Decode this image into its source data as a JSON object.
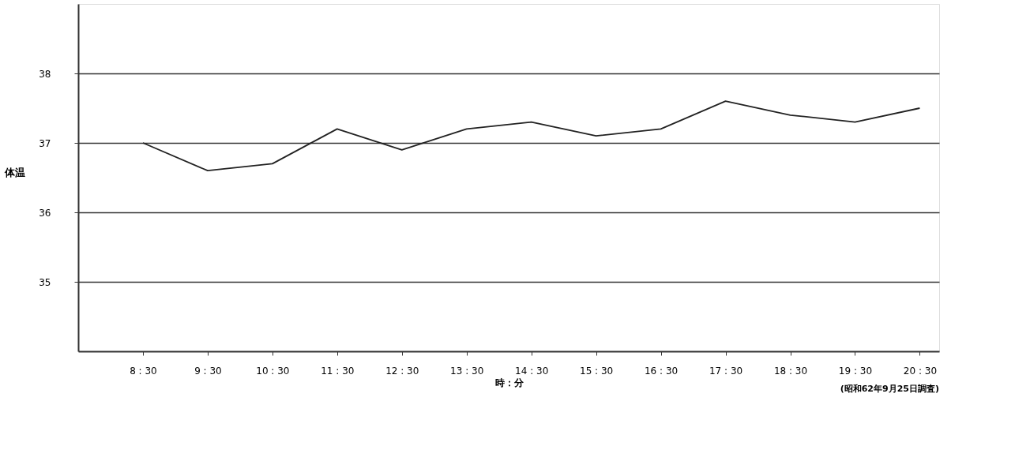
{
  "chart_data": {
    "type": "line",
    "xlabel": "時：分",
    "ylabel": "体温",
    "categories": [
      "8 : 30",
      "9 : 30",
      "10 : 30",
      "11 : 30",
      "12 : 30",
      "13 : 30",
      "14 : 30",
      "15 : 30",
      "16 : 30",
      "17 : 30",
      "18 : 30",
      "19 : 30",
      "20 : 30"
    ],
    "series": [
      {
        "color": "#222222",
        "values": [
          37.0,
          36.6,
          36.7,
          37.2,
          36.9,
          37.2,
          37.3,
          37.1,
          37.2,
          37.6,
          37.4,
          37.3,
          37.5
        ]
      }
    ],
    "ylim": [
      34,
      39
    ],
    "yticks": [
      35,
      36,
      37,
      38
    ],
    "grid": "y",
    "marker": "none",
    "line_style": "solid",
    "annotations": [
      "(昭和62年9月25日調査)"
    ]
  }
}
